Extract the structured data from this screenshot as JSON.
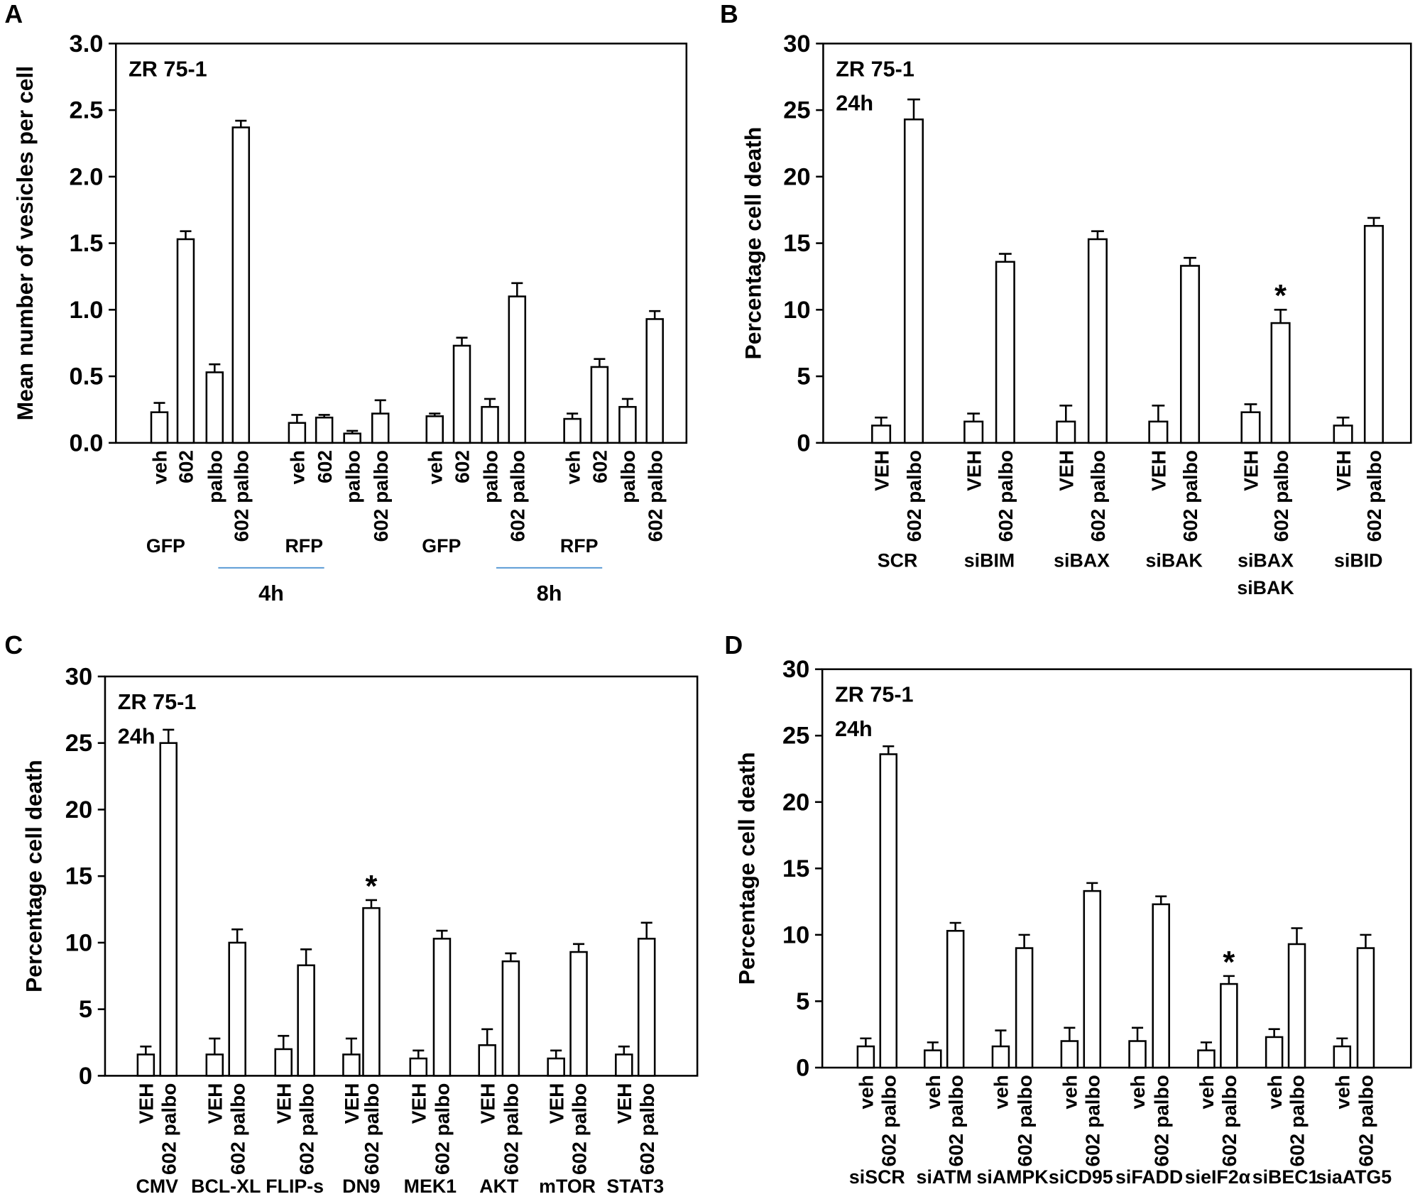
{
  "chart_data": [
    {
      "panel": "A",
      "type": "bar",
      "annotation": [
        "ZR 75-1"
      ],
      "ylabel": "Mean number of vesicles per cell",
      "ylim": [
        0,
        3.0
      ],
      "yticks": [
        "0.0",
        "0.5",
        "1.0",
        "1.5",
        "2.0",
        "2.5",
        "3.0"
      ],
      "groups": [
        {
          "label": "GFP",
          "bars": [
            {
              "label": "veh",
              "value": 0.23,
              "error": 0.07
            },
            {
              "label": "602",
              "value": 1.53,
              "error": 0.06
            },
            {
              "label": "palbo",
              "value": 0.53,
              "error": 0.06
            },
            {
              "label": "602 palbo",
              "value": 2.37,
              "error": 0.05
            }
          ]
        },
        {
          "label": "RFP",
          "bars": [
            {
              "label": "veh",
              "value": 0.15,
              "error": 0.06
            },
            {
              "label": "602",
              "value": 0.19,
              "error": 0.02
            },
            {
              "label": "palbo",
              "value": 0.07,
              "error": 0.02
            },
            {
              "label": "602 palbo",
              "value": 0.22,
              "error": 0.1
            }
          ]
        },
        {
          "label": "GFP",
          "bars": [
            {
              "label": "veh",
              "value": 0.2,
              "error": 0.02
            },
            {
              "label": "602",
              "value": 0.73,
              "error": 0.06
            },
            {
              "label": "palbo",
              "value": 0.27,
              "error": 0.06
            },
            {
              "label": "602 palbo",
              "value": 1.1,
              "error": 0.1
            }
          ]
        },
        {
          "label": "RFP",
          "bars": [
            {
              "label": "veh",
              "value": 0.18,
              "error": 0.04
            },
            {
              "label": "602",
              "value": 0.57,
              "error": 0.06
            },
            {
              "label": "palbo",
              "value": 0.27,
              "error": 0.06
            },
            {
              "label": "602 palbo",
              "value": 0.93,
              "error": 0.06
            }
          ]
        }
      ],
      "time_groups": [
        "4h",
        "8h"
      ]
    },
    {
      "panel": "B",
      "type": "bar",
      "annotation": [
        "ZR 75-1",
        "24h"
      ],
      "ylabel": "Percentage cell death",
      "ylim": [
        0,
        30
      ],
      "yticks": [
        "0",
        "5",
        "10",
        "15",
        "20",
        "25",
        "30"
      ],
      "groups": [
        {
          "label": "SCR",
          "bars": [
            {
              "label": "VEH",
              "value": 1.3,
              "error": 0.6
            },
            {
              "label": "602 palbo",
              "value": 24.3,
              "error": 1.5
            }
          ]
        },
        {
          "label": "siBIM",
          "bars": [
            {
              "label": "VEH",
              "value": 1.6,
              "error": 0.6
            },
            {
              "label": "602 palbo",
              "value": 13.6,
              "error": 0.6
            }
          ]
        },
        {
          "label": "siBAX",
          "bars": [
            {
              "label": "VEH",
              "value": 1.6,
              "error": 1.2
            },
            {
              "label": "602 palbo",
              "value": 15.3,
              "error": 0.6
            }
          ]
        },
        {
          "label": "siBAK",
          "bars": [
            {
              "label": "VEH",
              "value": 1.6,
              "error": 1.2
            },
            {
              "label": "602 palbo",
              "value": 13.3,
              "error": 0.6
            }
          ]
        },
        {
          "label": "siBAX\nsiBAK",
          "bars": [
            {
              "label": "VEH",
              "value": 2.3,
              "error": 0.6
            },
            {
              "label": "602 palbo",
              "value": 9.0,
              "error": 1.0,
              "marker": "*"
            }
          ]
        },
        {
          "label": "siBID",
          "bars": [
            {
              "label": "VEH",
              "value": 1.3,
              "error": 0.6
            },
            {
              "label": "602 palbo",
              "value": 16.3,
              "error": 0.6
            }
          ]
        }
      ]
    },
    {
      "panel": "C",
      "type": "bar",
      "annotation": [
        "ZR 75-1",
        "24h"
      ],
      "ylabel": "Percentage cell death",
      "ylim": [
        0,
        30
      ],
      "yticks": [
        "0",
        "5",
        "10",
        "15",
        "20",
        "25",
        "30"
      ],
      "groups": [
        {
          "label": "CMV",
          "bars": [
            {
              "label": "VEH",
              "value": 1.6,
              "error": 0.6
            },
            {
              "label": "602 palbo",
              "value": 25.0,
              "error": 1.0
            }
          ]
        },
        {
          "label": "BCL-XL",
          "bars": [
            {
              "label": "VEH",
              "value": 1.6,
              "error": 1.2
            },
            {
              "label": "602 palbo",
              "value": 10.0,
              "error": 1.0
            }
          ]
        },
        {
          "label": "FLIP-s",
          "bars": [
            {
              "label": "VEH",
              "value": 2.0,
              "error": 1.0
            },
            {
              "label": "602 palbo",
              "value": 8.3,
              "error": 1.2
            }
          ]
        },
        {
          "label": "DN9",
          "bars": [
            {
              "label": "VEH",
              "value": 1.6,
              "error": 1.2
            },
            {
              "label": "602 palbo",
              "value": 12.6,
              "error": 0.6,
              "marker": "*"
            }
          ]
        },
        {
          "label": "MEK1",
          "bars": [
            {
              "label": "VEH",
              "value": 1.3,
              "error": 0.6
            },
            {
              "label": "602 palbo",
              "value": 10.3,
              "error": 0.6
            }
          ]
        },
        {
          "label": "AKT",
          "bars": [
            {
              "label": "VEH",
              "value": 2.3,
              "error": 1.2
            },
            {
              "label": "602 palbo",
              "value": 8.6,
              "error": 0.6
            }
          ]
        },
        {
          "label": "mTOR",
          "bars": [
            {
              "label": "VEH",
              "value": 1.3,
              "error": 0.6
            },
            {
              "label": "602 palbo",
              "value": 9.3,
              "error": 0.6
            }
          ]
        },
        {
          "label": "STAT3",
          "bars": [
            {
              "label": "VEH",
              "value": 1.6,
              "error": 0.6
            },
            {
              "label": "602 palbo",
              "value": 10.3,
              "error": 1.2
            }
          ]
        }
      ]
    },
    {
      "panel": "D",
      "type": "bar",
      "annotation": [
        "ZR 75-1",
        "24h"
      ],
      "ylabel": "Percentage cell death",
      "ylim": [
        0,
        30
      ],
      "yticks": [
        "0",
        "5",
        "10",
        "15",
        "20",
        "25",
        "30"
      ],
      "groups": [
        {
          "label": "siSCR",
          "bars": [
            {
              "label": "veh",
              "value": 1.6,
              "error": 0.6
            },
            {
              "label": "602 palbo",
              "value": 23.6,
              "error": 0.6
            }
          ]
        },
        {
          "label": "siATM",
          "bars": [
            {
              "label": "veh",
              "value": 1.3,
              "error": 0.6
            },
            {
              "label": "602 palbo",
              "value": 10.3,
              "error": 0.6
            }
          ]
        },
        {
          "label": "siAMPK",
          "bars": [
            {
              "label": "veh",
              "value": 1.6,
              "error": 1.2
            },
            {
              "label": "602 palbo",
              "value": 9.0,
              "error": 1.0
            }
          ]
        },
        {
          "label": "siCD95",
          "bars": [
            {
              "label": "veh",
              "value": 2.0,
              "error": 1.0
            },
            {
              "label": "602 palbo",
              "value": 13.3,
              "error": 0.6
            }
          ]
        },
        {
          "label": "siFADD",
          "bars": [
            {
              "label": "veh",
              "value": 2.0,
              "error": 1.0
            },
            {
              "label": "602 palbo",
              "value": 12.3,
              "error": 0.6
            }
          ]
        },
        {
          "label": "sieIF2α",
          "bars": [
            {
              "label": "veh",
              "value": 1.3,
              "error": 0.6
            },
            {
              "label": "602 palbo",
              "value": 6.3,
              "error": 0.6,
              "marker": "*"
            }
          ]
        },
        {
          "label": "siBEC1",
          "bars": [
            {
              "label": "veh",
              "value": 2.3,
              "error": 0.6
            },
            {
              "label": "602 palbo",
              "value": 9.3,
              "error": 1.2
            }
          ]
        },
        {
          "label": "siaATG5",
          "bars": [
            {
              "label": "veh",
              "value": 1.6,
              "error": 0.6
            },
            {
              "label": "602 palbo",
              "value": 9.0,
              "error": 1.0
            }
          ]
        }
      ]
    }
  ],
  "colors": {
    "bar_fill": "#ffffff",
    "bar_stroke": "#000000",
    "bracket_line": "#5b9bd5"
  }
}
